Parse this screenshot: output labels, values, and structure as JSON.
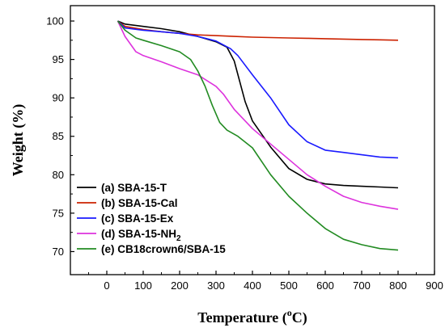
{
  "chart_data": {
    "type": "line",
    "xlabel": "Temperature (°C)",
    "xlabel_main": "Temperature (",
    "xlabel_sup": "o",
    "xlabel_end": "C)",
    "ylabel": "Weight (%)",
    "xlim": [
      -100,
      900
    ],
    "ylim": [
      67,
      102
    ],
    "xticks": [
      0,
      100,
      200,
      300,
      400,
      500,
      600,
      700,
      800,
      900
    ],
    "yticks": [
      70,
      75,
      80,
      85,
      90,
      95,
      100
    ],
    "legend_position": "bottom-left",
    "grid": false,
    "series": [
      {
        "name": "(a) SBA-15-T",
        "color": "#000000",
        "x": [
          30,
          50,
          100,
          150,
          200,
          250,
          300,
          330,
          350,
          380,
          400,
          450,
          500,
          550,
          600,
          650,
          700,
          750,
          800
        ],
        "y": [
          100,
          99.6,
          99.3,
          99.0,
          98.6,
          98.0,
          97.3,
          96.6,
          94.8,
          89.5,
          87.0,
          83.6,
          80.8,
          79.4,
          78.8,
          78.6,
          78.5,
          78.4,
          78.3
        ]
      },
      {
        "name": "(b) SBA-15-Cal",
        "color": "#cc2200",
        "x": [
          30,
          50,
          100,
          150,
          200,
          250,
          300,
          350,
          400,
          450,
          500,
          550,
          600,
          650,
          700,
          750,
          800
        ],
        "y": [
          100,
          99.3,
          98.9,
          98.6,
          98.4,
          98.2,
          98.1,
          98.0,
          97.9,
          97.85,
          97.8,
          97.75,
          97.7,
          97.65,
          97.6,
          97.55,
          97.5
        ]
      },
      {
        "name": "(c) SBA-15-Ex",
        "color": "#1a1aff",
        "x": [
          30,
          50,
          100,
          150,
          200,
          250,
          300,
          340,
          360,
          400,
          450,
          500,
          550,
          600,
          650,
          700,
          750,
          800
        ],
        "y": [
          100,
          99.1,
          98.8,
          98.6,
          98.4,
          98.0,
          97.4,
          96.4,
          95.5,
          93.0,
          90.0,
          86.5,
          84.3,
          83.2,
          82.9,
          82.6,
          82.3,
          82.2
        ]
      },
      {
        "name": "(d) SBA-15-NH2",
        "name_main": "(d) SBA-15-NH",
        "name_sub": "2",
        "color": "#dd33dd",
        "x": [
          30,
          50,
          80,
          100,
          150,
          200,
          250,
          300,
          320,
          350,
          400,
          450,
          500,
          550,
          600,
          650,
          700,
          750,
          800
        ],
        "y": [
          100,
          98.0,
          96.0,
          95.5,
          94.7,
          93.8,
          93.0,
          91.5,
          90.5,
          88.5,
          86.0,
          84.0,
          82.0,
          80.0,
          78.5,
          77.2,
          76.4,
          75.9,
          75.5
        ]
      },
      {
        "name": "(e) CB18crown6/SBA-15",
        "color": "#228b22",
        "x": [
          30,
          50,
          80,
          100,
          150,
          200,
          230,
          250,
          270,
          290,
          310,
          330,
          360,
          400,
          450,
          500,
          550,
          600,
          650,
          700,
          750,
          800
        ],
        "y": [
          100,
          98.8,
          97.8,
          97.5,
          96.8,
          96.0,
          95.0,
          93.5,
          91.5,
          89.0,
          86.8,
          85.8,
          85.0,
          83.5,
          80.0,
          77.2,
          75.0,
          73.0,
          71.6,
          70.9,
          70.4,
          70.2
        ]
      }
    ]
  }
}
